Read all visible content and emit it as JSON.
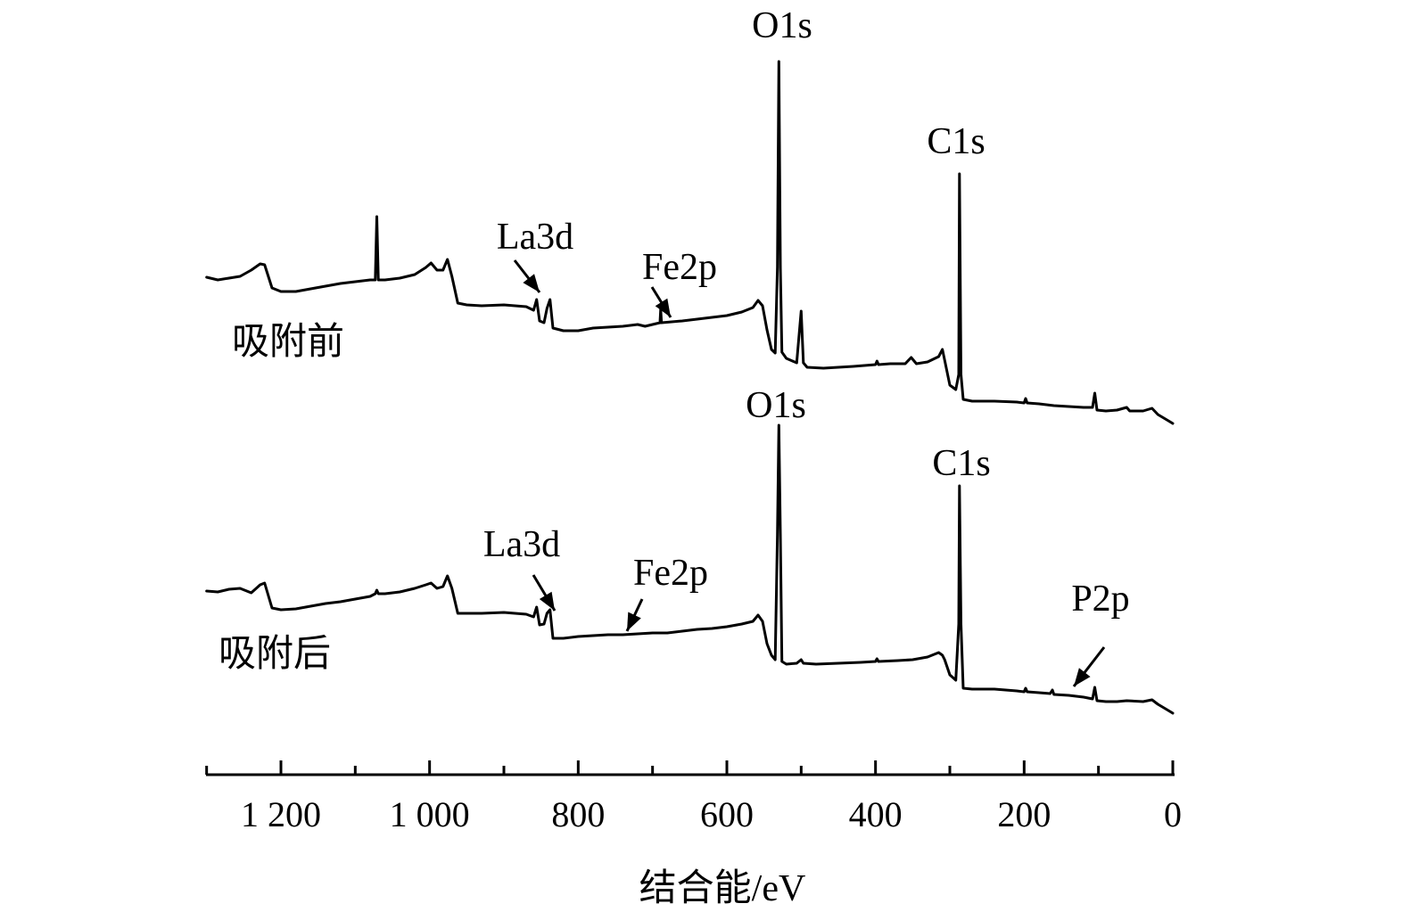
{
  "chart_data": {
    "type": "line",
    "xlabel": "结合能/eV",
    "ylabel": "",
    "xlim": [
      1300,
      0
    ],
    "x_reversed": true,
    "grid": false,
    "x_ticks": [
      {
        "value": 1200,
        "label": "1 200"
      },
      {
        "value": 1000,
        "label": "1 000"
      },
      {
        "value": 800,
        "label": "800"
      },
      {
        "value": 600,
        "label": "600"
      },
      {
        "value": 400,
        "label": "400"
      },
      {
        "value": 200,
        "label": "200"
      },
      {
        "value": 0,
        "label": "0"
      }
    ],
    "minor_ticks": [
      1100,
      900,
      700,
      500,
      300,
      100
    ],
    "series": [
      {
        "name": "吸附前",
        "points": [
          [
            1300,
            311
          ],
          [
            1285,
            314
          ],
          [
            1270,
            312
          ],
          [
            1255,
            310
          ],
          [
            1240,
            303
          ],
          [
            1228,
            296
          ],
          [
            1222,
            297
          ],
          [
            1212,
            323
          ],
          [
            1200,
            327
          ],
          [
            1180,
            327
          ],
          [
            1160,
            324
          ],
          [
            1140,
            321
          ],
          [
            1120,
            318
          ],
          [
            1100,
            316
          ],
          [
            1090,
            315
          ],
          [
            1080,
            314
          ],
          [
            1073,
            314
          ],
          [
            1071,
            243
          ],
          [
            1069,
            314
          ],
          [
            1060,
            314
          ],
          [
            1040,
            312
          ],
          [
            1020,
            308
          ],
          [
            1005,
            300
          ],
          [
            998,
            295
          ],
          [
            990,
            303
          ],
          [
            982,
            303
          ],
          [
            976,
            291
          ],
          [
            970,
            310
          ],
          [
            962,
            340
          ],
          [
            950,
            342
          ],
          [
            930,
            343
          ],
          [
            900,
            342
          ],
          [
            870,
            344
          ],
          [
            860,
            348
          ],
          [
            856,
            336
          ],
          [
            852,
            360
          ],
          [
            846,
            362
          ],
          [
            842,
            346
          ],
          [
            838,
            336
          ],
          [
            834,
            368
          ],
          [
            820,
            371
          ],
          [
            800,
            371
          ],
          [
            780,
            368
          ],
          [
            760,
            367
          ],
          [
            740,
            366
          ],
          [
            720,
            364
          ],
          [
            710,
            366
          ],
          [
            690,
            362
          ],
          [
            689,
            347
          ],
          [
            688,
            362
          ],
          [
            660,
            360
          ],
          [
            640,
            358
          ],
          [
            620,
            356
          ],
          [
            600,
            354
          ],
          [
            580,
            350
          ],
          [
            565,
            345
          ],
          [
            558,
            337
          ],
          [
            552,
            343
          ],
          [
            546,
            370
          ],
          [
            540,
            392
          ],
          [
            535,
            396
          ],
          [
            532,
            300
          ],
          [
            530,
            69
          ],
          [
            528,
            300
          ],
          [
            526,
            395
          ],
          [
            520,
            402
          ],
          [
            506,
            407
          ],
          [
            500,
            349
          ],
          [
            497,
            407
          ],
          [
            492,
            412
          ],
          [
            470,
            413
          ],
          [
            450,
            412
          ],
          [
            430,
            411
          ],
          [
            400,
            409
          ],
          [
            398,
            405
          ],
          [
            396,
            409
          ],
          [
            380,
            408
          ],
          [
            360,
            408
          ],
          [
            352,
            401
          ],
          [
            345,
            408
          ],
          [
            330,
            406
          ],
          [
            315,
            400
          ],
          [
            310,
            392
          ],
          [
            307,
            404
          ],
          [
            300,
            432
          ],
          [
            292,
            437
          ],
          [
            288,
            420
          ],
          [
            287,
            195
          ],
          [
            285,
            420
          ],
          [
            282,
            448
          ],
          [
            270,
            450
          ],
          [
            240,
            450
          ],
          [
            210,
            451
          ],
          [
            200,
            452
          ],
          [
            198,
            447
          ],
          [
            196,
            452
          ],
          [
            180,
            453
          ],
          [
            160,
            455
          ],
          [
            140,
            456
          ],
          [
            120,
            457
          ],
          [
            108,
            457
          ],
          [
            105,
            441
          ],
          [
            102,
            460
          ],
          [
            90,
            461
          ],
          [
            75,
            460
          ],
          [
            62,
            457
          ],
          [
            58,
            461
          ],
          [
            40,
            461
          ],
          [
            28,
            458
          ],
          [
            20,
            465
          ],
          [
            10,
            470
          ],
          [
            0,
            475
          ]
        ]
      },
      {
        "name": "吸附后",
        "points": [
          [
            1300,
            663
          ],
          [
            1285,
            664
          ],
          [
            1270,
            661
          ],
          [
            1255,
            660
          ],
          [
            1240,
            665
          ],
          [
            1228,
            656
          ],
          [
            1222,
            654
          ],
          [
            1212,
            682
          ],
          [
            1200,
            684
          ],
          [
            1180,
            683
          ],
          [
            1160,
            680
          ],
          [
            1140,
            677
          ],
          [
            1120,
            675
          ],
          [
            1100,
            672
          ],
          [
            1080,
            669
          ],
          [
            1073,
            666
          ],
          [
            1071,
            662
          ],
          [
            1069,
            666
          ],
          [
            1060,
            666
          ],
          [
            1040,
            664
          ],
          [
            1020,
            660
          ],
          [
            1005,
            656
          ],
          [
            998,
            654
          ],
          [
            990,
            660
          ],
          [
            982,
            658
          ],
          [
            976,
            646
          ],
          [
            970,
            660
          ],
          [
            962,
            688
          ],
          [
            950,
            688
          ],
          [
            930,
            688
          ],
          [
            900,
            687
          ],
          [
            870,
            689
          ],
          [
            860,
            692
          ],
          [
            856,
            681
          ],
          [
            852,
            701
          ],
          [
            846,
            700
          ],
          [
            842,
            688
          ],
          [
            838,
            684
          ],
          [
            834,
            716
          ],
          [
            820,
            716
          ],
          [
            800,
            714
          ],
          [
            780,
            713
          ],
          [
            760,
            712
          ],
          [
            740,
            712
          ],
          [
            720,
            711
          ],
          [
            700,
            710
          ],
          [
            680,
            710
          ],
          [
            660,
            708
          ],
          [
            640,
            706
          ],
          [
            620,
            705
          ],
          [
            600,
            703
          ],
          [
            580,
            700
          ],
          [
            565,
            697
          ],
          [
            558,
            690
          ],
          [
            552,
            697
          ],
          [
            546,
            722
          ],
          [
            540,
            735
          ],
          [
            535,
            740
          ],
          [
            532,
            600
          ],
          [
            530,
            477
          ],
          [
            528,
            600
          ],
          [
            526,
            742
          ],
          [
            520,
            745
          ],
          [
            506,
            744
          ],
          [
            500,
            740
          ],
          [
            497,
            744
          ],
          [
            480,
            745
          ],
          [
            450,
            744
          ],
          [
            420,
            743
          ],
          [
            400,
            742
          ],
          [
            398,
            739
          ],
          [
            396,
            742
          ],
          [
            370,
            741
          ],
          [
            350,
            740
          ],
          [
            330,
            737
          ],
          [
            315,
            732
          ],
          [
            310,
            735
          ],
          [
            307,
            740
          ],
          [
            300,
            757
          ],
          [
            292,
            763
          ],
          [
            288,
            700
          ],
          [
            287,
            545
          ],
          [
            285,
            700
          ],
          [
            282,
            772
          ],
          [
            270,
            773
          ],
          [
            240,
            773
          ],
          [
            210,
            775
          ],
          [
            200,
            776
          ],
          [
            198,
            772
          ],
          [
            196,
            776
          ],
          [
            180,
            777
          ],
          [
            165,
            778
          ],
          [
            162,
            774
          ],
          [
            160,
            779
          ],
          [
            140,
            780
          ],
          [
            120,
            782
          ],
          [
            108,
            784
          ],
          [
            105,
            771
          ],
          [
            102,
            786
          ],
          [
            90,
            787
          ],
          [
            75,
            787
          ],
          [
            62,
            786
          ],
          [
            40,
            787
          ],
          [
            28,
            785
          ],
          [
            20,
            790
          ],
          [
            10,
            795
          ],
          [
            0,
            800
          ]
        ]
      }
    ],
    "annotations": [
      {
        "series": "吸附前",
        "text": "O1s",
        "peak_x": 530
      },
      {
        "series": "吸附前",
        "text": "C1s",
        "peak_x": 287
      },
      {
        "series": "吸附前",
        "text": "La3d",
        "peak_x": 838
      },
      {
        "series": "吸附前",
        "text": "Fe2p",
        "peak_x": 710
      },
      {
        "series": "吸附后",
        "text": "O1s",
        "peak_x": 530
      },
      {
        "series": "吸附后",
        "text": "C1s",
        "peak_x": 287
      },
      {
        "series": "吸附后",
        "text": "La3d",
        "peak_x": 838
      },
      {
        "series": "吸附后",
        "text": "Fe2p",
        "peak_x": 730
      },
      {
        "series": "吸附后",
        "text": "P2p",
        "peak_x": 135
      }
    ]
  }
}
